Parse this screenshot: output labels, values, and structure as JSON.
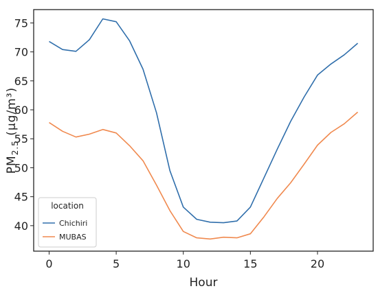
{
  "chart_data": {
    "type": "line",
    "x": [
      0,
      1,
      2,
      3,
      4,
      5,
      6,
      7,
      8,
      9,
      10,
      11,
      12,
      13,
      14,
      15,
      16,
      17,
      18,
      19,
      20,
      21,
      22,
      23
    ],
    "series": [
      {
        "name": "Chichiri",
        "color": "#2f6eab",
        "values": [
          71.8,
          70.4,
          70.1,
          72.1,
          75.7,
          75.2,
          71.9,
          67.0,
          59.5,
          49.5,
          43.2,
          41.1,
          40.6,
          40.5,
          40.8,
          43.2,
          48.2,
          53.2,
          58.0,
          62.2,
          66.0,
          67.9,
          69.5,
          71.5
        ]
      },
      {
        "name": "MUBAS",
        "color": "#f0894e",
        "values": [
          57.8,
          56.3,
          55.3,
          55.8,
          56.6,
          56.0,
          53.8,
          51.2,
          47.0,
          42.6,
          39.0,
          37.9,
          37.7,
          38.0,
          37.9,
          38.6,
          41.5,
          44.7,
          47.4,
          50.6,
          53.9,
          56.1,
          57.6,
          59.6
        ]
      }
    ],
    "xlabel": "Hour",
    "ylabel": "PM",
    "ylabel_sub": "2.5",
    "ylabel_units": " (μg/m³)",
    "xlim": [
      -1.15,
      24.15
    ],
    "ylim": [
      35.6,
      77.3
    ],
    "xticks": [
      0,
      5,
      10,
      15,
      20
    ],
    "yticks": [
      40,
      45,
      50,
      55,
      60,
      65,
      70,
      75
    ],
    "grid": false,
    "legend": {
      "title": "location",
      "placement": "lower-left"
    }
  }
}
